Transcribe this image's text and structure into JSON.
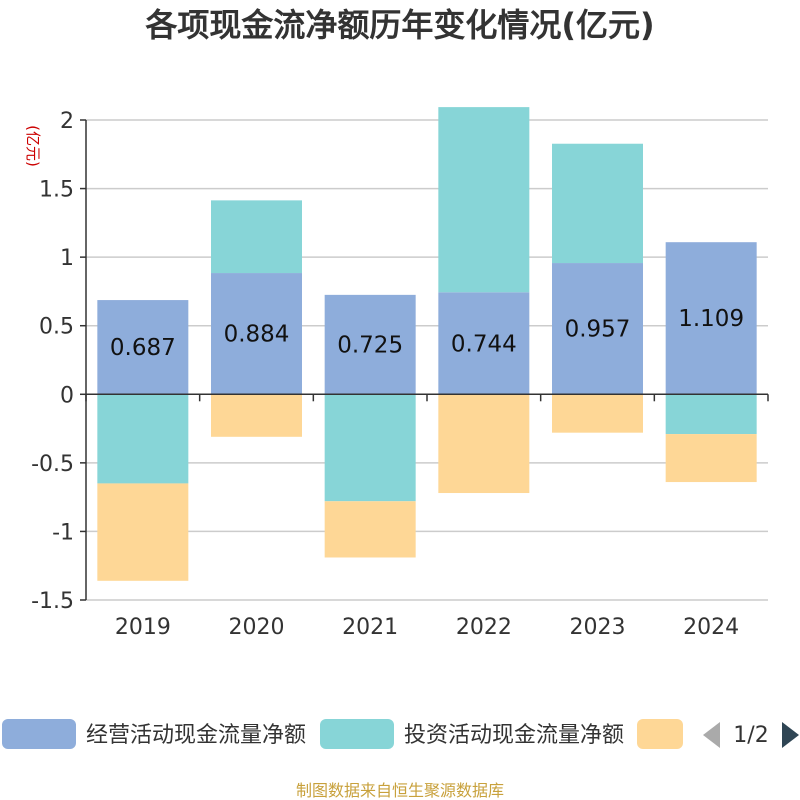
{
  "chart_data": {
    "type": "bar",
    "stacked": true,
    "title": "各项现金流净额历年变化情况(亿元)",
    "ylabel": "(亿元)",
    "xlabel": "",
    "ylim": [
      -1.5,
      2
    ],
    "yticks": [
      2,
      1.5,
      1,
      0.5,
      0,
      -0.5,
      -1,
      -1.5
    ],
    "ytick_labels": [
      "2",
      "1.5",
      "1",
      "0.5",
      "0",
      "-0.5",
      "-1",
      "-1.5"
    ],
    "categories": [
      "2019",
      "2020",
      "2021",
      "2022",
      "2023",
      "2024"
    ],
    "series": [
      {
        "name": "经营活动现金流量净额",
        "color": "#8eaddb",
        "values": [
          0.687,
          0.884,
          0.725,
          0.744,
          0.957,
          1.109
        ],
        "labels": [
          "0.687",
          "0.884",
          "0.725",
          "0.744",
          "0.957",
          "1.109"
        ]
      },
      {
        "name": "投资活动现金流量净额",
        "color": "#87d5d7",
        "values": [
          -0.65,
          0.53,
          -0.78,
          1.35,
          0.87,
          -0.29
        ]
      },
      {
        "name": "",
        "color": "#fed796",
        "values": [
          -0.71,
          -0.31,
          -0.41,
          -0.72,
          -0.28,
          -0.35
        ]
      }
    ],
    "grid": true,
    "legend_position": "bottom"
  },
  "legend_page": "1/2",
  "source": "制图数据来自恒生聚源数据库",
  "colors": {
    "axis": "#333333",
    "grid": "#cccccc",
    "unit": "#cc0000",
    "source": "#c8a13c",
    "arrow_prev": "#aaaaaa",
    "arrow_next": "#2f4554"
  }
}
